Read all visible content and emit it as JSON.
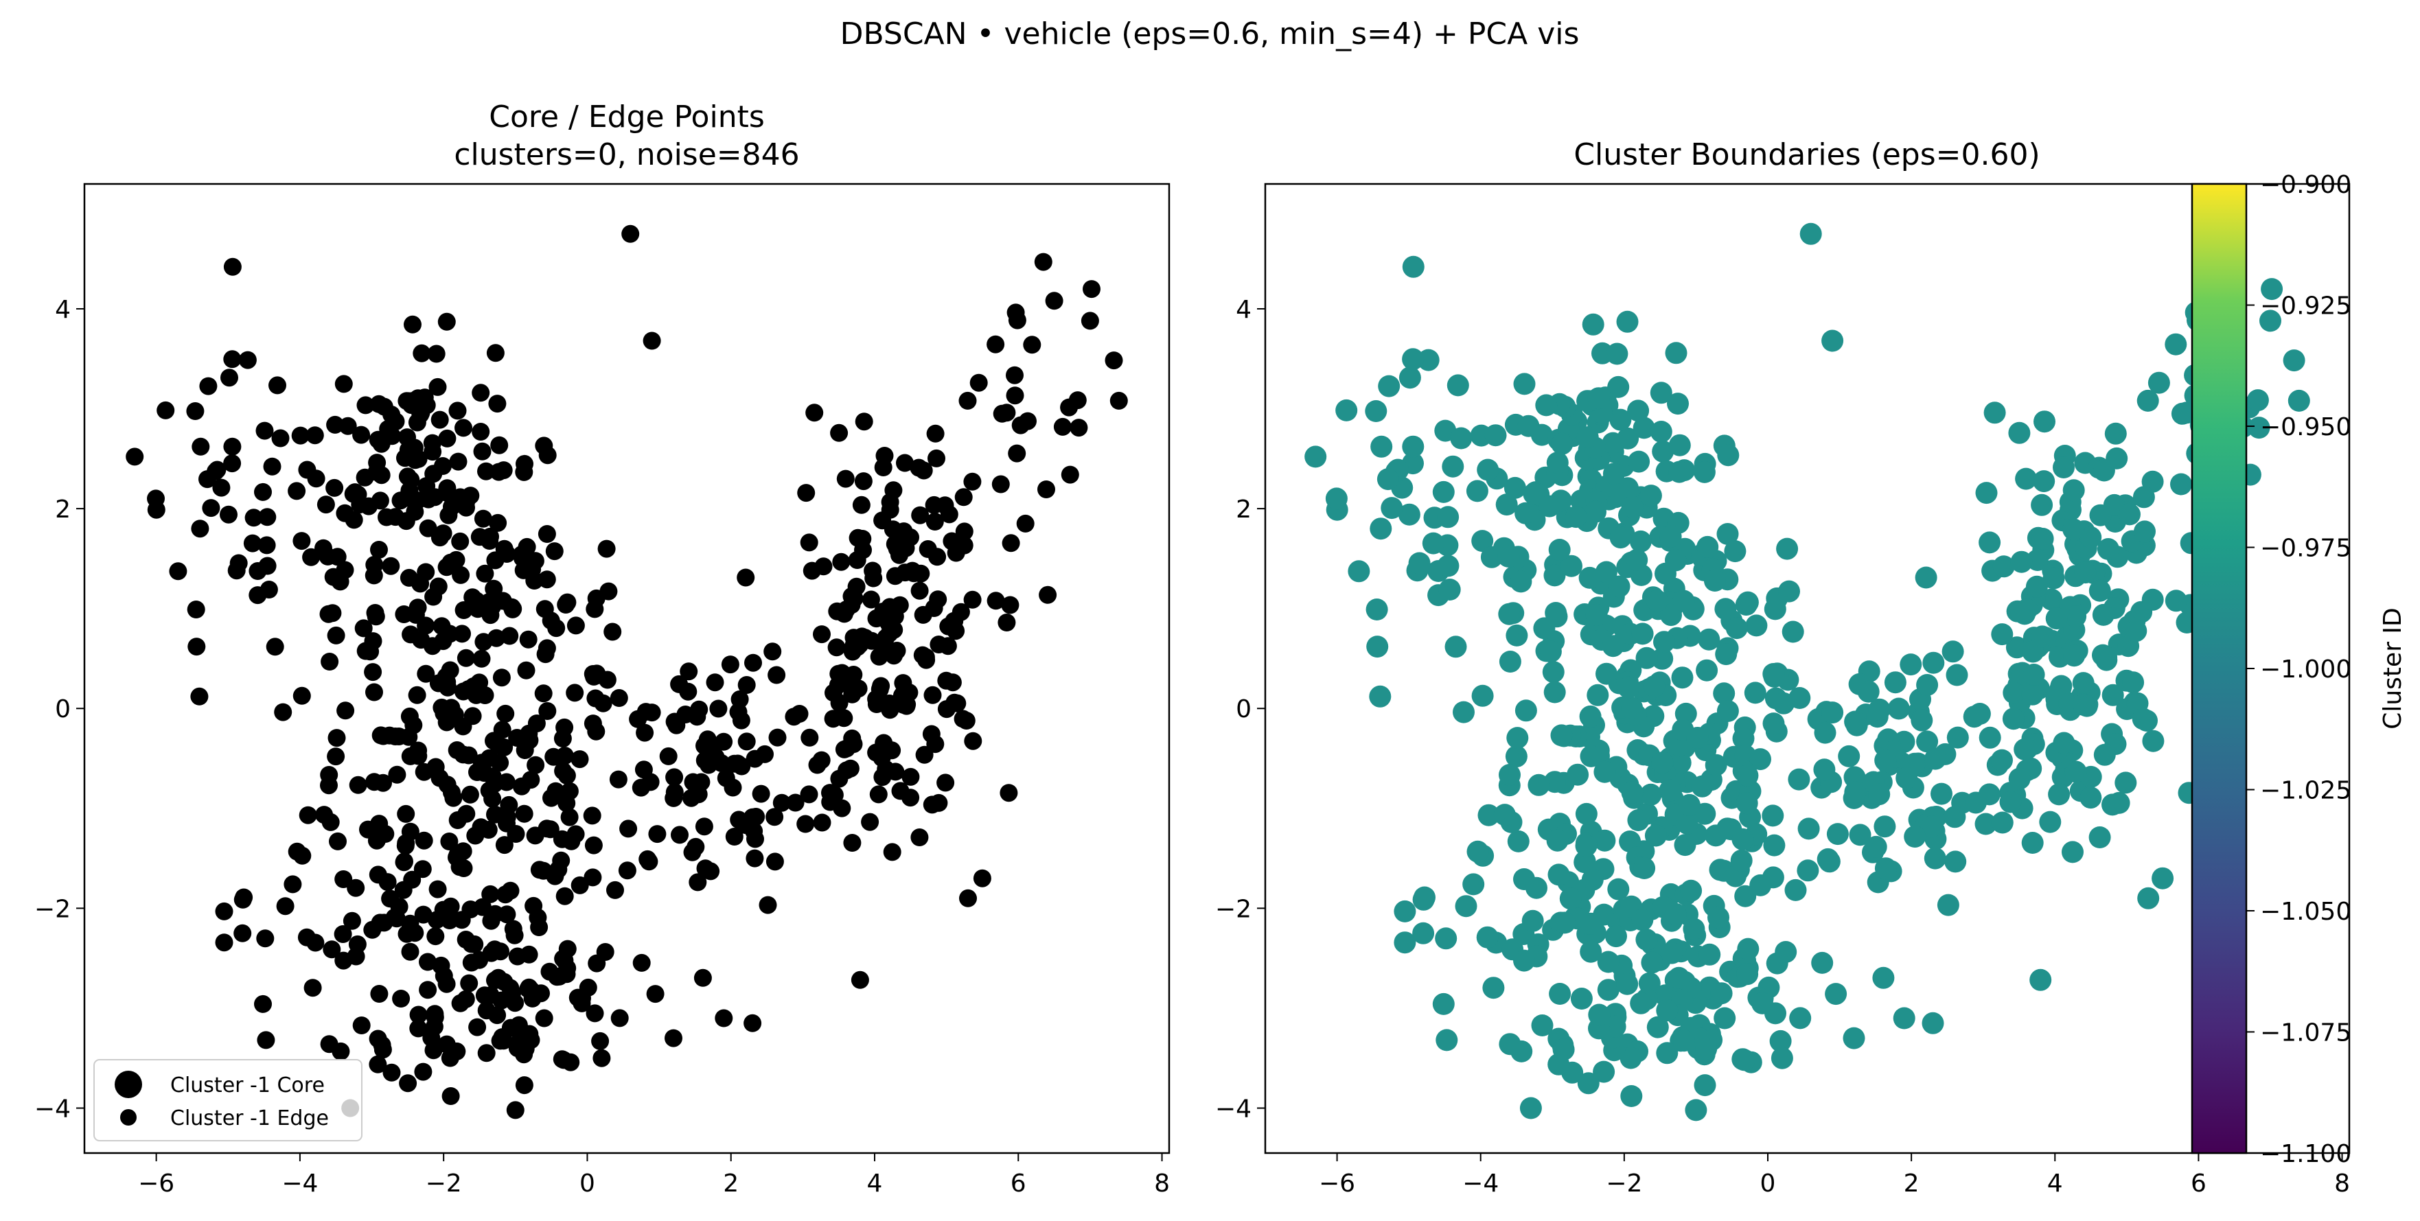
{
  "figure": {
    "suptitle": "DBSCAN • vehicle  (eps=0.6, min_s=4) + PCA vis"
  },
  "chart_data": [
    {
      "type": "scatter",
      "title_line1": "Core / Edge Points",
      "title_line2": "clusters=0, noise=846",
      "xlim": [
        -7.0,
        8.1
      ],
      "ylim": [
        -4.45,
        5.25
      ],
      "xticks": [
        -6,
        -4,
        -2,
        0,
        2,
        4,
        6,
        8
      ],
      "yticks": [
        -4,
        -2,
        0,
        2,
        4
      ],
      "grid": false,
      "marker_color": "#000000",
      "legend": {
        "placement": "lower-left",
        "entries": [
          "Cluster -1 Core",
          "Cluster -1 Edge"
        ]
      },
      "series": [
        {
          "name": "Cluster -1 Edge",
          "points": "sampled",
          "note_points": [
            [
              0.6,
              4.75
            ],
            [
              0.9,
              3.68
            ],
            [
              6.5,
              4.08
            ],
            [
              7.0,
              3.88
            ],
            [
              7.4,
              3.08
            ],
            [
              -6.3,
              2.52
            ],
            [
              -2.1,
              3.55
            ],
            [
              -1.0,
              -4.02
            ],
            [
              -3.3,
              -4.0
            ],
            [
              0.2,
              -3.5
            ],
            [
              1.2,
              -3.3
            ],
            [
              6.1,
              1.85
            ],
            [
              5.5,
              -1.7
            ],
            [
              5.3,
              -1.9
            ],
            [
              -1.9,
              -3.88
            ],
            [
              -0.6,
              -3.1
            ],
            [
              2.3,
              -3.15
            ],
            [
              1.9,
              -3.1
            ],
            [
              -5.4,
              0.12
            ],
            [
              -4.8,
              -2.25
            ]
          ]
        }
      ]
    },
    {
      "type": "scatter",
      "title": "Cluster Boundaries  (eps=0.60)",
      "xlim": [
        -7.0,
        8.1
      ],
      "ylim": [
        -4.45,
        5.25
      ],
      "xticks": [
        -6,
        -4,
        -2,
        0,
        2,
        4,
        6,
        8
      ],
      "yticks": [
        -4,
        -2,
        0,
        2,
        4
      ],
      "grid": false,
      "marker_color": "#21918c",
      "colorbar": {
        "label": "Cluster ID",
        "range": [
          -1.1,
          -0.9
        ],
        "ticks": [
          "−0.900",
          "−0.925",
          "−0.950",
          "−0.975",
          "−1.000",
          "−1.025",
          "−1.050",
          "−1.075",
          "−1.100"
        ],
        "colormap": "viridis"
      }
    }
  ]
}
